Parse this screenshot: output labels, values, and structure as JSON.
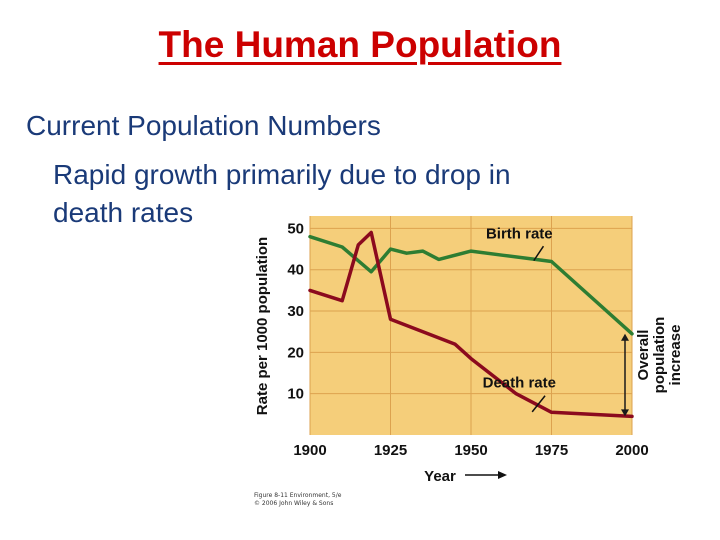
{
  "slide": {
    "title": "The Human Population",
    "heading": "Current Population Numbers",
    "bullet_line1": "Rapid growth primarily due to drop in",
    "bullet_line2": "death rates",
    "credit_line1": "Figure 8-11 Environment, 5/e",
    "credit_line2": "© 2006 John Wiley & Sons"
  },
  "colors": {
    "title": "#cc0000",
    "text": "#1a3a78",
    "plot_bg": "#f5ce7a",
    "grid": "#dca24f",
    "birth": "#2e7d32",
    "death": "#8b0a1e",
    "arrow": "#1a1a1a"
  },
  "chart_data": {
    "type": "line",
    "title": "",
    "xlabel": "Year",
    "ylabel": "Rate per 1000 population",
    "xlim": [
      1900,
      2000
    ],
    "ylim": [
      0,
      53
    ],
    "xticks": [
      1900,
      1925,
      1950,
      1975,
      2000
    ],
    "yticks": [
      10,
      20,
      30,
      40,
      50
    ],
    "grid": true,
    "series": [
      {
        "name": "Birth rate",
        "x": [
          1900,
          1910,
          1919,
          1925,
          1930,
          1935,
          1940,
          1950,
          1960,
          1970,
          1975,
          2000
        ],
        "y": [
          48,
          45.5,
          39.5,
          45,
          44,
          44.5,
          42.5,
          44.5,
          43.5,
          42.5,
          42,
          24.5
        ]
      },
      {
        "name": "Death rate",
        "x": [
          1900,
          1910,
          1915,
          1919,
          1925,
          1945,
          1950,
          1964,
          1975,
          2000
        ],
        "y": [
          35,
          32.5,
          46,
          49,
          28,
          22,
          18.5,
          10,
          5.5,
          4.5
        ]
      }
    ],
    "annotations": {
      "birth_label": "Birth rate",
      "death_label": "Death rate",
      "overall_label": [
        "Overall",
        "population",
        "increase"
      ]
    }
  }
}
